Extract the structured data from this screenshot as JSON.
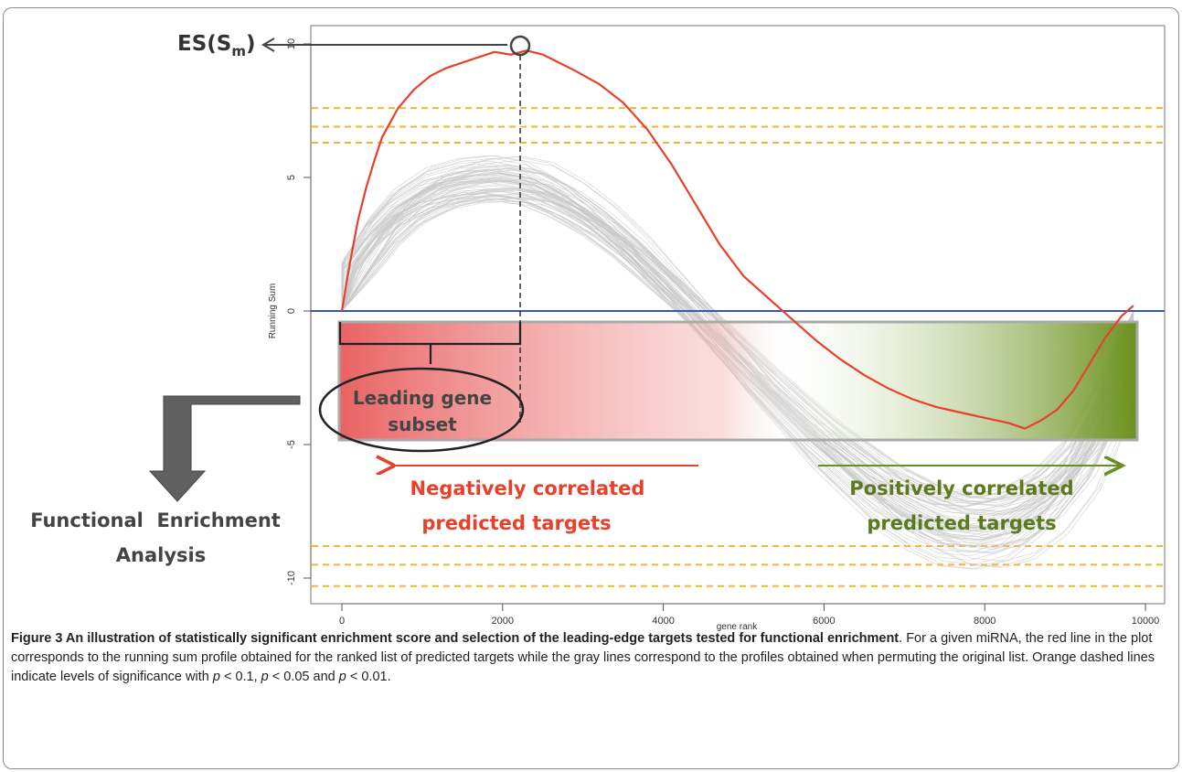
{
  "chart_data": {
    "type": "line",
    "xlabel": "gene rank",
    "ylabel": "Running Sum",
    "xlim": [
      -600,
      10200
    ],
    "ylim": [
      -11.3,
      10.6
    ],
    "x_ticks": [
      0,
      2000,
      4000,
      6000,
      8000,
      10000
    ],
    "x_tick_labels": [
      "0",
      "2000",
      "4000",
      "6000",
      "8000",
      "10000"
    ],
    "y_ticks": [
      -10,
      -5,
      0,
      5,
      10
    ],
    "y_tick_labels": [
      "-10",
      "-5",
      "0",
      "5",
      "10"
    ],
    "grid": false,
    "zero_line": {
      "y": 0,
      "color": "#3a56b8"
    },
    "significance_lines": {
      "color": "#f2b630",
      "style": "dashed",
      "levels": [
        7.6,
        6.9,
        6.3,
        -8.8,
        -9.5,
        -10.3
      ]
    },
    "series": [
      {
        "color": "#e8412b",
        "x": [
          0,
          100,
          200,
          300,
          400,
          500,
          700,
          900,
          1100,
          1300,
          1500,
          1700,
          1900,
          2100,
          2300,
          2500,
          2700,
          2900,
          3200,
          3500,
          3800,
          4100,
          4400,
          4700,
          5000,
          5300,
          5600,
          5900,
          6200,
          6500,
          6800,
          7100,
          7400,
          7700,
          8000,
          8300,
          8500,
          8700,
          8900,
          9100,
          9300,
          9500,
          9700,
          9850
        ],
        "y": [
          0,
          1.8,
          3.4,
          4.6,
          5.6,
          6.5,
          7.6,
          8.3,
          8.8,
          9.1,
          9.3,
          9.5,
          9.7,
          9.6,
          9.75,
          9.6,
          9.3,
          9.0,
          8.5,
          7.8,
          6.8,
          5.5,
          4.0,
          2.5,
          1.3,
          0.5,
          -0.3,
          -1.1,
          -1.8,
          -2.4,
          -2.9,
          -3.3,
          -3.6,
          -3.8,
          -4.0,
          -4.2,
          -4.4,
          -4.1,
          -3.7,
          -3.0,
          -2.0,
          -1.0,
          -0.2,
          0.2
        ]
      },
      {
        "color": "#c8c8c8",
        "x": [
          0,
          200,
          500,
          800,
          1200,
          1600,
          2000,
          2400,
          2800,
          3200,
          3600,
          4000,
          4400,
          4800,
          5200,
          5600,
          6000,
          6400,
          6800,
          7200,
          7600,
          8000,
          8400,
          8800,
          9200,
          9600,
          9850
        ],
        "y": [
          0,
          1.7,
          3.0,
          3.9,
          4.6,
          4.9,
          5.0,
          4.8,
          4.2,
          3.4,
          2.4,
          1.2,
          0,
          -1.3,
          -2.6,
          -3.8,
          -5.0,
          -6.0,
          -7.0,
          -7.7,
          -8.2,
          -8.3,
          -8.0,
          -7.2,
          -5.8,
          -3.4,
          0
        ]
      }
    ]
  },
  "annotations": {
    "es_label_main": "ES(S",
    "es_label_sub": "m",
    "es_label_close": ")",
    "leading_line1": "Leading gene",
    "leading_line2": "subset",
    "neg_line1": "Negatively correlated",
    "neg_line2": "predicted targets",
    "pos_line1": "Positively correlated",
    "pos_line2": "predicted targets",
    "func_line1": "Functional  Enrichment",
    "func_line2": "Analysis"
  },
  "caption": {
    "title": "Figure 3 An illustration of statistically significant enrichment score and selection of the leading-edge targets tested for functional enrichment",
    "text1": ". For a given miRNA, the red line in the plot corresponds to the running sum profile obtained for the ranked list of predicted targets while the gray lines correspond to the profiles obtained when permuting the original list. Orange dashed lines indicate levels of significance with ",
    "p1": "p",
    "t1": " < 0.1, ",
    "p2": "p",
    "t2": " < 0.05 and ",
    "p3": "p",
    "t3": " < 0.01."
  }
}
